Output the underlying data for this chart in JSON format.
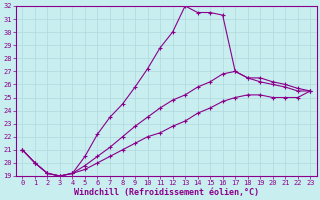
{
  "xlabel": "Windchill (Refroidissement éolien,°C)",
  "bg_color": "#c8eef0",
  "line_color": "#8b008b",
  "grid_color": "#b0d8dc",
  "xlim": [
    -0.5,
    23.5
  ],
  "ylim": [
    19,
    32
  ],
  "xticks": [
    0,
    1,
    2,
    3,
    4,
    5,
    6,
    7,
    8,
    9,
    10,
    11,
    12,
    13,
    14,
    15,
    16,
    17,
    18,
    19,
    20,
    21,
    22,
    23
  ],
  "yticks": [
    19,
    20,
    21,
    22,
    23,
    24,
    25,
    26,
    27,
    28,
    29,
    30,
    31,
    32
  ],
  "line1_x": [
    0,
    1,
    2,
    3,
    4,
    5,
    6,
    7,
    8,
    9,
    10,
    11,
    12,
    13,
    14,
    15,
    16,
    17,
    18,
    19,
    20,
    21,
    22,
    23
  ],
  "line1_y": [
    21.0,
    20.0,
    19.2,
    19.0,
    19.2,
    20.5,
    22.2,
    23.5,
    24.5,
    25.8,
    27.2,
    28.8,
    30.0,
    32.0,
    31.5,
    31.5,
    31.3,
    27.0,
    26.5,
    26.2,
    26.0,
    25.8,
    25.5,
    25.5
  ],
  "line2_x": [
    0,
    1,
    2,
    3,
    4,
    5,
    6,
    7,
    8,
    9,
    10,
    11,
    12,
    13,
    14,
    15,
    16,
    17,
    18,
    19,
    20,
    21,
    22,
    23
  ],
  "line2_y": [
    21.0,
    20.0,
    19.2,
    19.0,
    19.2,
    19.8,
    20.5,
    21.2,
    22.0,
    22.8,
    23.5,
    24.2,
    24.8,
    25.2,
    25.8,
    26.2,
    26.8,
    27.0,
    26.5,
    26.5,
    26.2,
    26.0,
    25.7,
    25.5
  ],
  "line3_x": [
    0,
    1,
    2,
    3,
    4,
    5,
    6,
    7,
    8,
    9,
    10,
    11,
    12,
    13,
    14,
    15,
    16,
    17,
    18,
    19,
    20,
    21,
    22,
    23
  ],
  "line3_y": [
    21.0,
    20.0,
    19.2,
    19.0,
    19.2,
    19.5,
    20.0,
    20.5,
    21.0,
    21.5,
    22.0,
    22.3,
    22.8,
    23.2,
    23.8,
    24.2,
    24.7,
    25.0,
    25.2,
    25.2,
    25.0,
    25.0,
    25.0,
    25.5
  ],
  "marker": "+",
  "marker_size": 3,
  "linewidth": 0.8,
  "tick_fontsize": 5.0,
  "label_fontsize": 6.0
}
